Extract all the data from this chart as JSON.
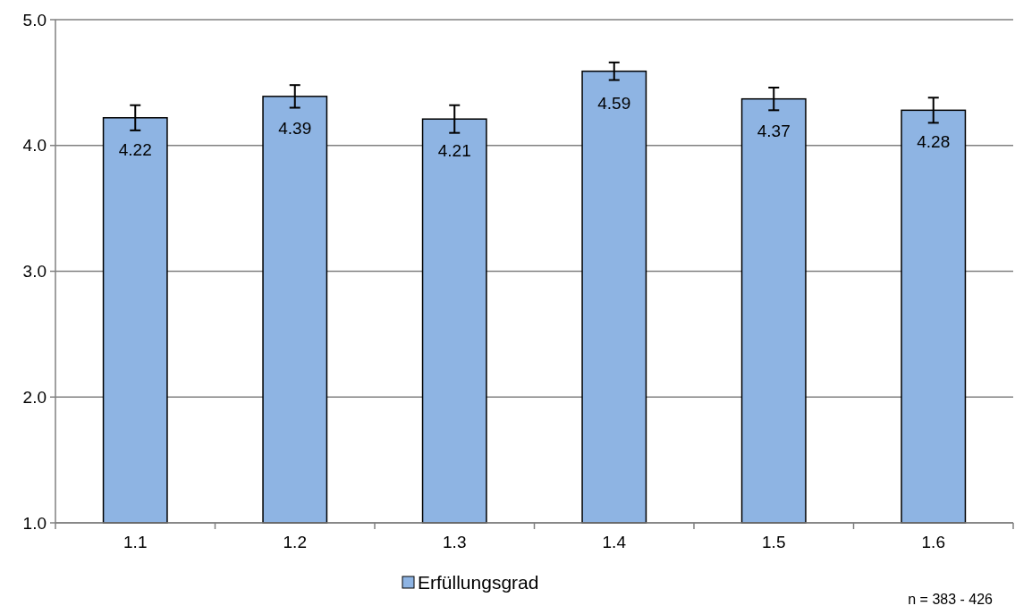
{
  "chart_data": {
    "type": "bar",
    "categories": [
      "1.1",
      "1.2",
      "1.3",
      "1.4",
      "1.5",
      "1.6"
    ],
    "series": [
      {
        "name": "Erfüllungsgrad",
        "color": "#8eb4e3",
        "values": [
          4.22,
          4.39,
          4.21,
          4.59,
          4.37,
          4.28
        ],
        "errors": [
          0.1,
          0.09,
          0.11,
          0.07,
          0.09,
          0.1
        ]
      }
    ],
    "ylim": [
      1,
      5
    ],
    "yticks": [
      {
        "value": 1,
        "label": "1.0"
      },
      {
        "value": 2,
        "label": "2.0"
      },
      {
        "value": 3,
        "label": "3.0"
      },
      {
        "value": 4,
        "label": "4.0"
      },
      {
        "value": 5,
        "label": "5.0"
      }
    ],
    "grid": "y",
    "legend": "bottom",
    "data_labels": true,
    "annotations": [
      "n = 383 - 426"
    ]
  }
}
